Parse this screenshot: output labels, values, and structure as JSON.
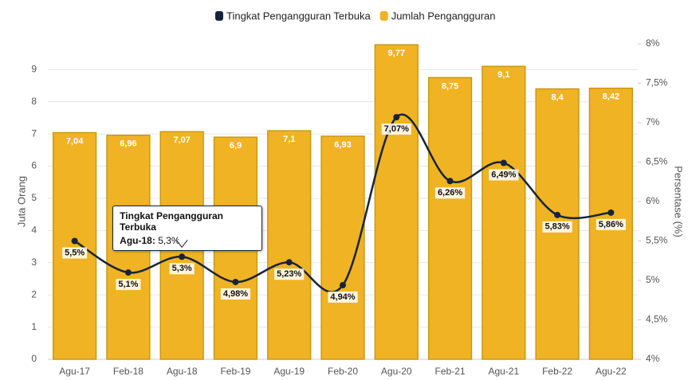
{
  "chart_data": {
    "type": "bar-line",
    "categories": [
      "Agu-17",
      "Feb-18",
      "Agu-18",
      "Feb-19",
      "Agu-19",
      "Feb-20",
      "Agu-20",
      "Feb-21",
      "Agu-21",
      "Feb-22",
      "Agu-22"
    ],
    "series": [
      {
        "name": "Tingkat Pengangguran Terbuka",
        "type": "line",
        "axis": "y2",
        "color": "#16233b",
        "values": [
          5.5,
          5.1,
          5.3,
          4.98,
          5.23,
          4.94,
          7.07,
          6.26,
          6.49,
          5.83,
          5.86
        ],
        "value_labels": [
          "5,5%",
          "5,1%",
          "5,3%",
          "4,98%",
          "5,23%",
          "4,94%",
          "7,07%",
          "6,26%",
          "6,49%",
          "5,83%",
          "5,86%"
        ]
      },
      {
        "name": "Jumlah Pengangguran",
        "type": "bar",
        "color": "#f0b323",
        "values": [
          7.04,
          6.96,
          7.07,
          6.9,
          7.1,
          6.93,
          9.77,
          8.75,
          9.1,
          8.4,
          8.42
        ],
        "value_labels": [
          "7,04",
          "6,96",
          "7,07",
          "6,9",
          "7,1",
          "6,93",
          "9,77",
          "8,75",
          "9,1",
          "8,4",
          "8,42"
        ]
      }
    ],
    "ylabel": "Juta Orang",
    "y2label": "Persentase (%)",
    "ylim": [
      0,
      9.8
    ],
    "yticks": [
      0,
      1,
      2,
      3,
      4,
      5,
      6,
      7,
      8,
      9
    ],
    "y2lim": [
      4,
      8
    ],
    "y2ticks": [
      {
        "value": 4,
        "label": "4%"
      },
      {
        "value": 4.5,
        "label": "4,5%"
      },
      {
        "value": 5,
        "label": "5%"
      },
      {
        "value": 5.5,
        "label": "5,5%"
      },
      {
        "value": 6,
        "label": "6%"
      },
      {
        "value": 6.5,
        "label": "6,5%"
      },
      {
        "value": 7,
        "label": "7%"
      },
      {
        "value": 7.5,
        "label": "7,5%"
      },
      {
        "value": 8,
        "label": "8%"
      }
    ],
    "grid": true,
    "legend": "top",
    "tooltip": {
      "series": 0,
      "index": 2
    }
  }
}
